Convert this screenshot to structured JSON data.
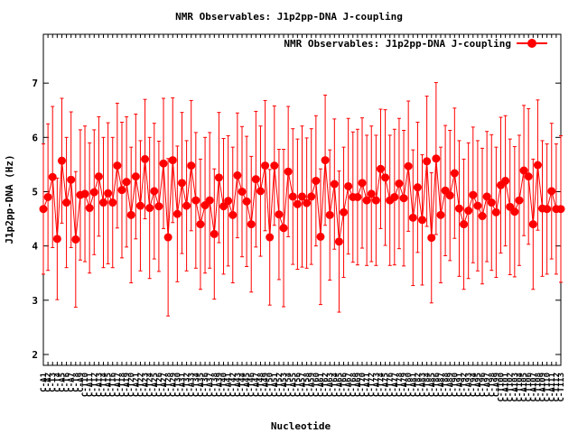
{
  "chart_data": {
    "type": "line",
    "title": "NMR Observables: J1p2pp-DNA J-coupling",
    "xlabel": "Nucleotide",
    "ylabel": "J1p2pp-DNA (Hz)",
    "ylim": [
      1.8,
      7.9
    ],
    "yticks": [
      2,
      3,
      4,
      5,
      6,
      7
    ],
    "grid": false,
    "legend_position": "top-right",
    "series_color": "#ff0000",
    "series": [
      {
        "name": "NMR Observables: J1p2pp-DNA J-coupling",
        "values": [
          4.68,
          4.9,
          5.27,
          4.13,
          5.57,
          4.8,
          5.22,
          4.12,
          4.94,
          4.96,
          4.7,
          4.99,
          5.28,
          4.8,
          4.97,
          4.8,
          5.48,
          5.03,
          5.18,
          4.57,
          5.28,
          4.74,
          5.6,
          4.7,
          5.01,
          4.73,
          5.52,
          4.16,
          5.58,
          4.59,
          5.16,
          4.74,
          5.48,
          4.84,
          4.4,
          4.75,
          4.84,
          4.22,
          5.26,
          4.73,
          4.83,
          4.57,
          5.3,
          5.0,
          4.82,
          4.4,
          5.23,
          5.01,
          5.48,
          4.16,
          5.48,
          4.58,
          4.33,
          5.37,
          4.91,
          4.77,
          4.91,
          4.79,
          4.91,
          5.2,
          4.17,
          5.58,
          4.57,
          5.14,
          4.08,
          4.62,
          5.1,
          4.9,
          4.9,
          5.16,
          4.84,
          4.96,
          4.84,
          5.42,
          5.26,
          4.84,
          4.9,
          5.15,
          4.88,
          5.47,
          4.52,
          5.08,
          4.48,
          5.56,
          4.15,
          5.61,
          4.57,
          5.02,
          4.93,
          5.34,
          4.69,
          4.4,
          4.65,
          4.94,
          4.74,
          4.55,
          4.91,
          4.8,
          4.62,
          5.12,
          5.2,
          4.72,
          4.63,
          4.84,
          5.39,
          5.28,
          4.4,
          5.49,
          4.69,
          4.68,
          5.01,
          4.68,
          4.68
        ],
        "error": [
          1.2,
          1.35,
          1.3,
          1.12,
          1.15,
          1.2,
          1.25,
          1.25,
          1.2,
          1.25,
          1.2,
          1.15,
          1.1,
          1.2,
          1.3,
          1.2,
          1.15,
          1.25,
          1.2,
          1.25,
          1.15,
          1.2,
          1.1,
          1.3,
          1.25,
          1.2,
          1.2,
          1.45,
          1.15,
          1.25,
          1.3,
          1.2,
          1.2,
          1.25,
          1.2,
          1.25,
          1.25,
          1.2,
          1.2,
          1.25,
          1.2,
          1.25,
          1.15,
          1.2,
          1.2,
          1.25,
          1.25,
          1.2,
          1.2,
          1.25,
          1.1,
          1.2,
          1.45,
          1.2,
          1.25,
          1.2,
          1.3,
          1.2,
          1.25,
          1.2,
          1.25,
          1.2,
          1.2,
          1.2,
          1.3,
          1.2,
          1.25,
          1.2,
          1.25,
          1.2,
          1.2,
          1.25,
          1.2,
          1.1,
          1.25,
          1.2,
          1.25,
          1.2,
          1.25,
          1.2,
          1.25,
          1.2,
          1.2,
          1.2,
          1.2,
          1.4,
          1.25,
          1.2,
          1.2,
          1.2,
          1.25,
          1.2,
          1.25,
          1.25,
          1.2,
          1.25,
          1.2,
          1.25,
          1.2,
          1.25,
          1.2,
          1.25,
          1.2,
          1.2,
          1.2,
          1.25,
          1.2,
          1.2,
          1.25,
          1.2,
          1.25,
          1.2,
          1.35
        ]
      }
    ],
    "categories": [
      "C-A1",
      "C-A2",
      "C-T3",
      "C-T4",
      "C-A5",
      "C-T6",
      "C-A7",
      "C-T8",
      "C-A9",
      "C-T10",
      "C-A11",
      "C-T12",
      "C-A13",
      "C-T14",
      "C-A15",
      "C-T16",
      "C-A17",
      "C-T18",
      "C-A19",
      "C-T20",
      "C-A21",
      "C-T22",
      "C-A23",
      "C-T24",
      "C-A25",
      "C-T26",
      "C-A27",
      "C-T28",
      "C-A29",
      "C-T30",
      "C-A31",
      "C-T32",
      "C-A33",
      "C-T34",
      "C-A35",
      "C-T36",
      "C-A37",
      "C-T38",
      "C-A39",
      "C-T40",
      "C-A41",
      "C-T42",
      "C-A43",
      "C-T44",
      "C-A45",
      "C-T46",
      "C-A47",
      "C-T48",
      "C-A49",
      "C-T50",
      "C-A51",
      "C-T52",
      "C-A53",
      "C-T54",
      "C-A55",
      "C-T56",
      "C-A57",
      "C-T58",
      "C-A59",
      "C-T60",
      "C-A61",
      "C-T62",
      "C-A63",
      "C-T64",
      "C-A65",
      "C-T66",
      "C-A67",
      "C-T68",
      "C-A69",
      "C-T70",
      "C-A71",
      "C-T72",
      "C-A73",
      "C-T74",
      "C-A75",
      "C-T76",
      "C-A77",
      "C-T78",
      "C-A79",
      "C-T80",
      "C-A81",
      "C-T82",
      "C-A83",
      "C-T84",
      "C-A85",
      "C-T86",
      "C-A87",
      "C-T88",
      "C-A89",
      "C-T90",
      "C-A91",
      "C-T92",
      "C-A93",
      "C-T94",
      "C-A95",
      "C-T96",
      "C-A97",
      "C-T98",
      "C-A99",
      "C-T100",
      "C-A101",
      "C-T102",
      "C-A103",
      "C-T104",
      "C-A105",
      "C-T106",
      "C-A107",
      "C-T108",
      "C-A109",
      "C-T110",
      "C-A111",
      "C-T112",
      "C-T113"
    ]
  }
}
